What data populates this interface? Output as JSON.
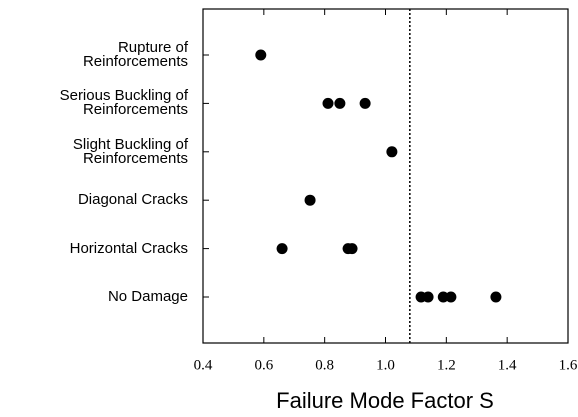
{
  "chart_data": {
    "type": "dotplot",
    "xlabel": "Failure Mode Factor S",
    "categories": [
      "Rupture of\nReinforcements",
      "Serious Buckling of\nReinforcements",
      "Slight Buckling of\nReinforcements",
      "Diagonal Cracks",
      "Horizontal Cracks",
      "No Damage"
    ],
    "values": [
      [
        0.59
      ],
      [
        0.811,
        0.85,
        0.933
      ],
      [
        1.021
      ],
      [
        0.752
      ],
      [
        0.66,
        0.877,
        0.89
      ],
      [
        1.117,
        1.14,
        1.19,
        1.215,
        1.363
      ]
    ],
    "color": "#000000",
    "reference_line": 1.08,
    "xlim": [
      0.4,
      1.6
    ],
    "xticks": [
      0.4,
      0.6,
      0.8,
      1.0,
      1.2,
      1.4,
      1.6
    ]
  }
}
